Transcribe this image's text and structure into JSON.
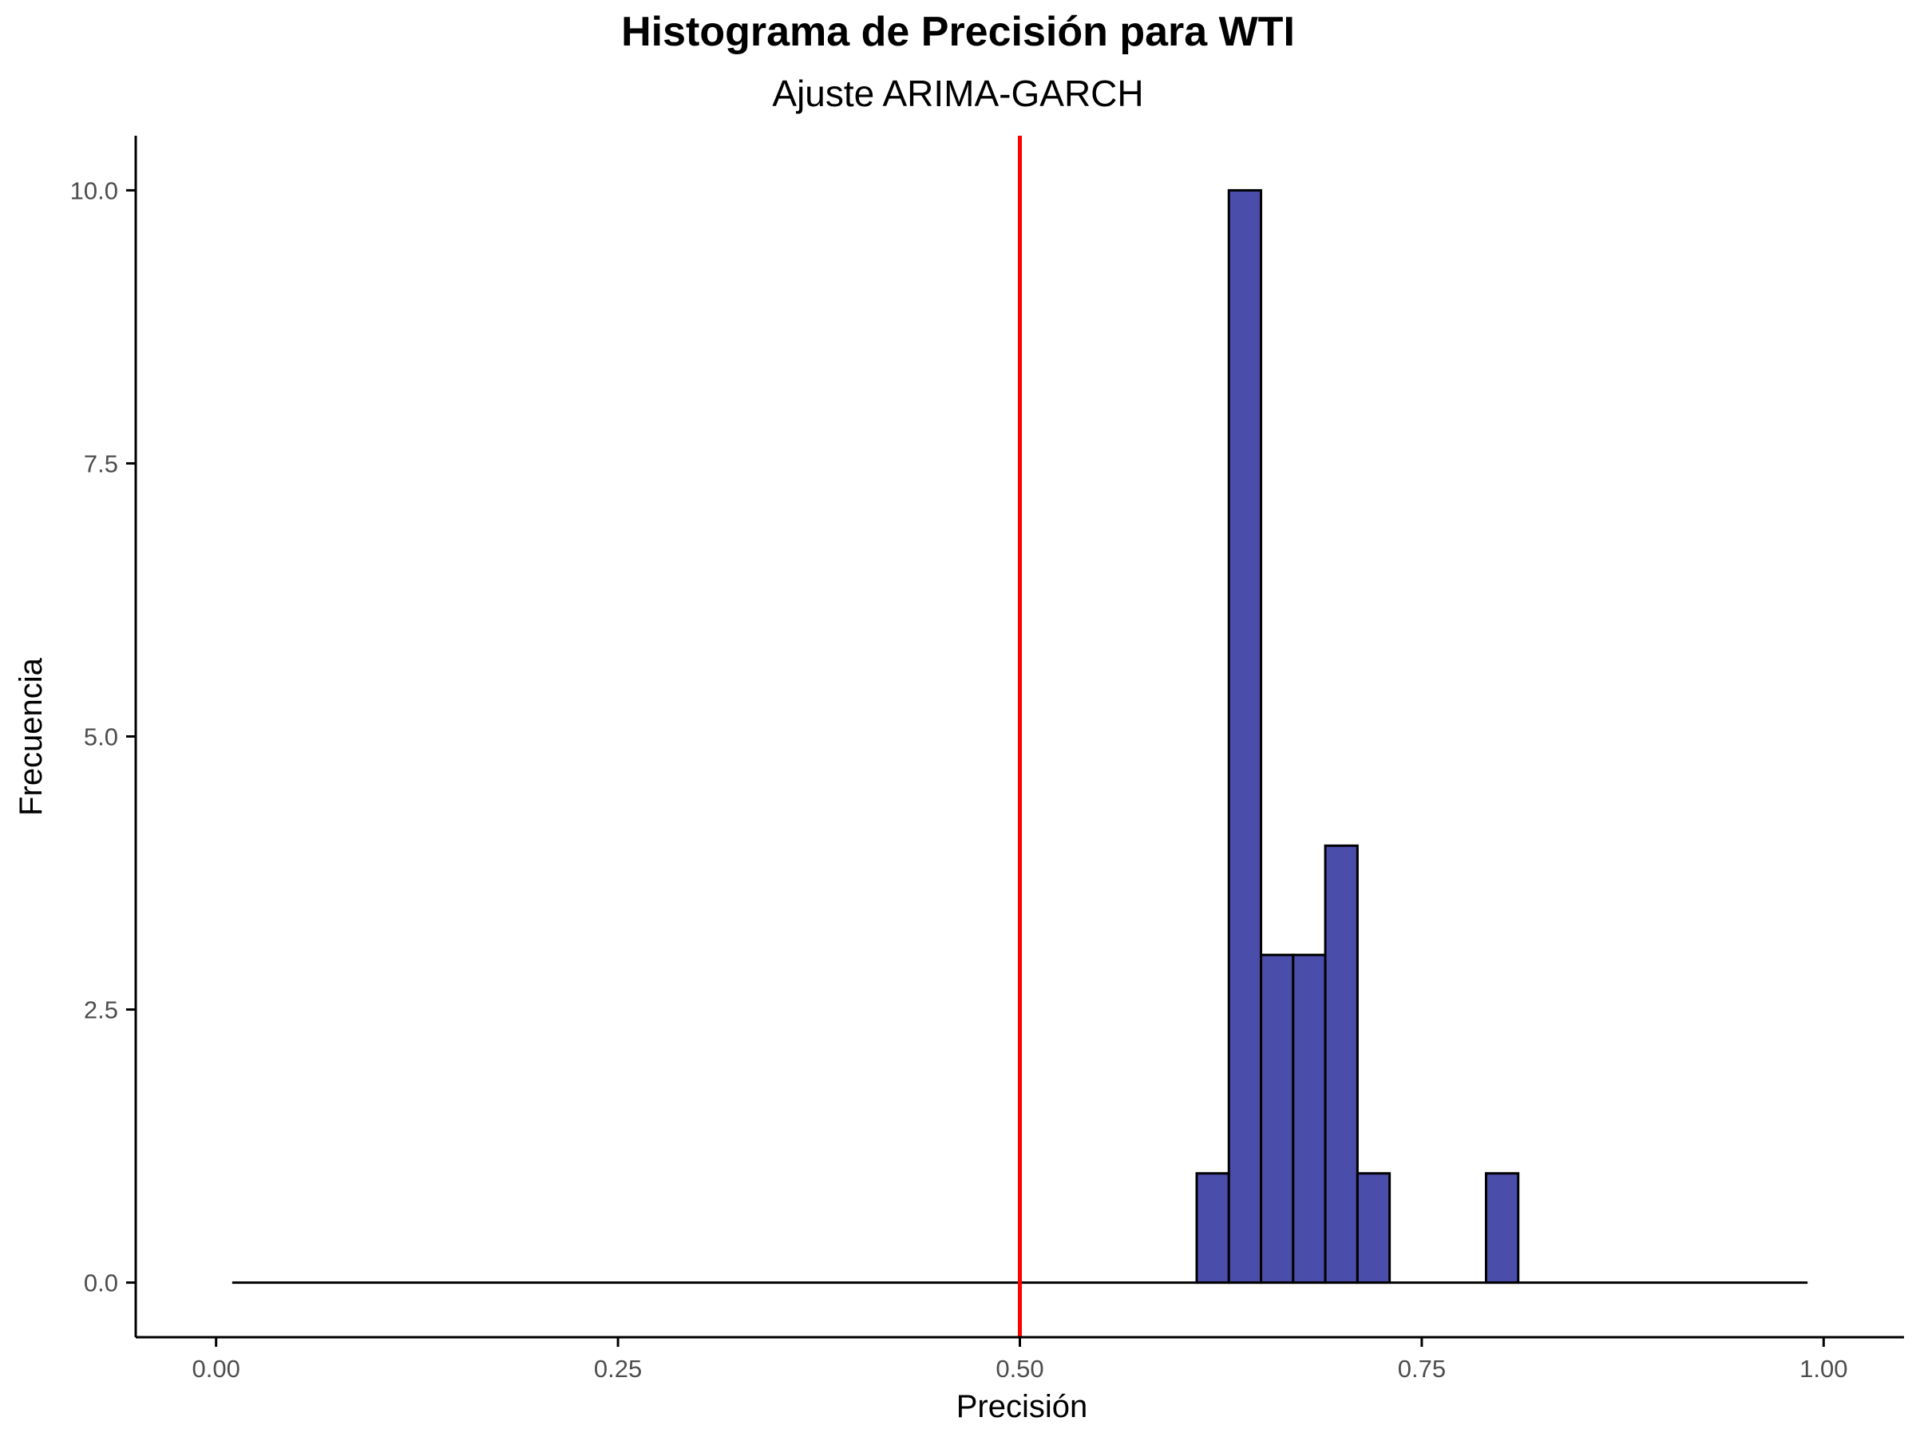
{
  "chart_data": {
    "type": "bar",
    "title": "Histograma de Precisión para WTI",
    "subtitle": "Ajuste ARIMA-GARCH",
    "xlabel": "Precisión",
    "ylabel": "Frecuencia",
    "xlim": [
      -0.05,
      1.05
    ],
    "ylim": [
      -0.5,
      10.5
    ],
    "x_ticks": [
      {
        "value": 0.0,
        "label": "0.00"
      },
      {
        "value": 0.25,
        "label": "0.25"
      },
      {
        "value": 0.5,
        "label": "0.50"
      },
      {
        "value": 0.75,
        "label": "0.75"
      },
      {
        "value": 1.0,
        "label": "1.00"
      }
    ],
    "y_ticks": [
      {
        "value": 0.0,
        "label": "0.0"
      },
      {
        "value": 2.5,
        "label": "2.5"
      },
      {
        "value": 5.0,
        "label": "5.0"
      },
      {
        "value": 7.5,
        "label": "7.5"
      },
      {
        "value": 10.0,
        "label": "10.0"
      }
    ],
    "bin_width": 0.02,
    "bins": [
      {
        "x": 0.62,
        "count": 1
      },
      {
        "x": 0.64,
        "count": 10
      },
      {
        "x": 0.66,
        "count": 3
      },
      {
        "x": 0.68,
        "count": 3
      },
      {
        "x": 0.7,
        "count": 4
      },
      {
        "x": 0.72,
        "count": 1
      },
      {
        "x": 0.8,
        "count": 1
      }
    ],
    "baseline_range": [
      0.01,
      0.99
    ],
    "reference_line": {
      "x": 0.5,
      "color": "#ff0000"
    },
    "bar_fill": "#4b4dab",
    "bar_stroke": "#000000",
    "grid": false
  }
}
